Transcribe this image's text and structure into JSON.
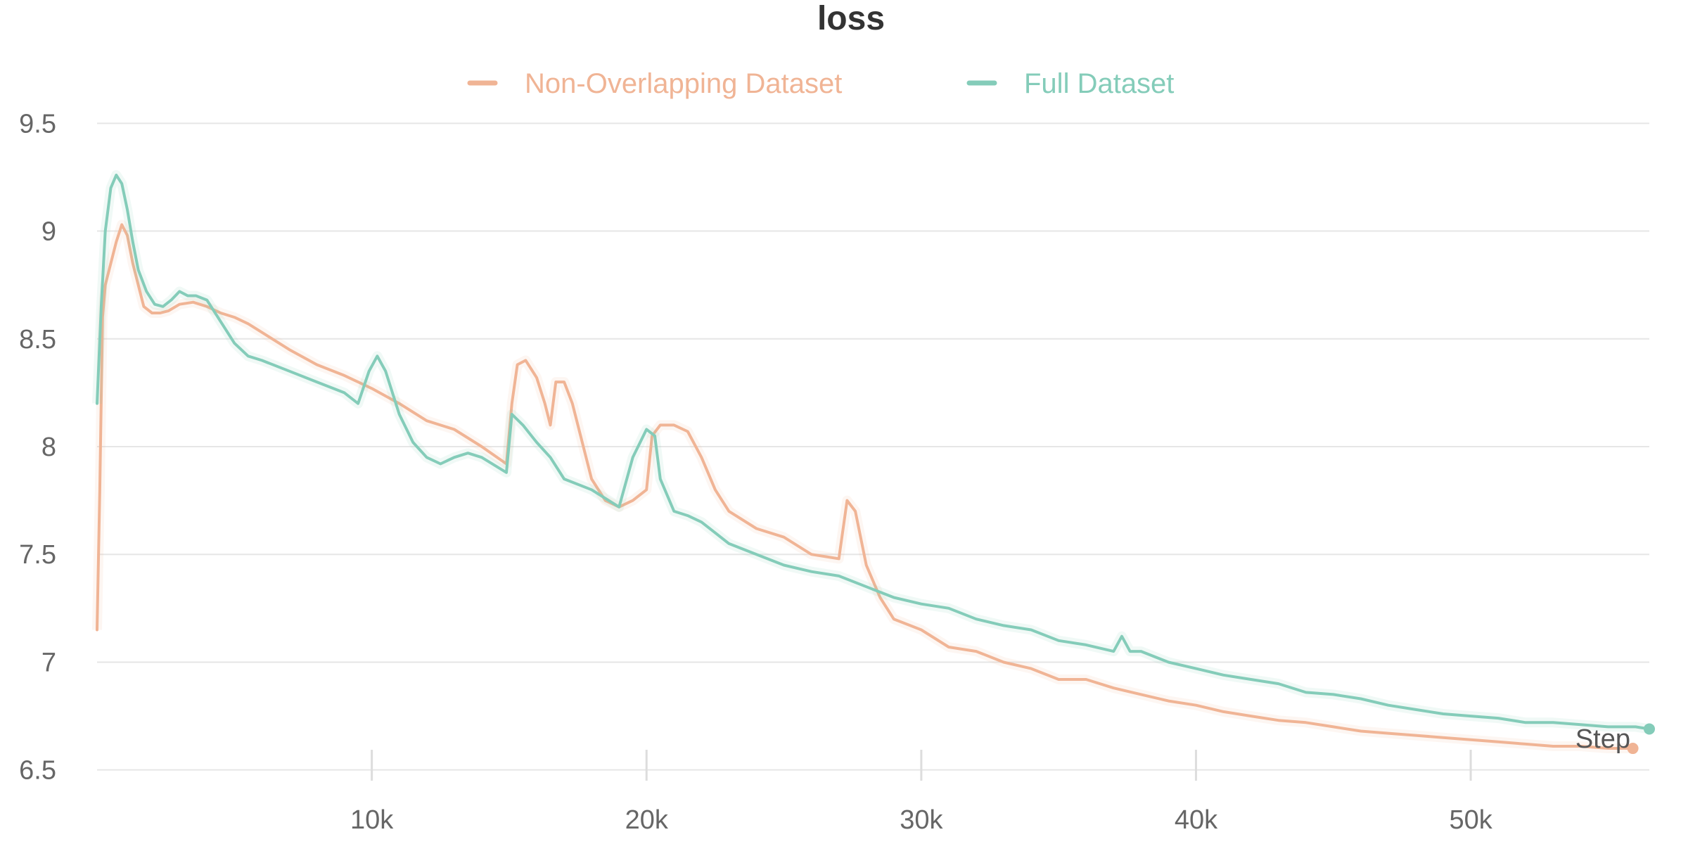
{
  "chart_data": {
    "type": "line",
    "title": "loss",
    "xlabel": "Step",
    "ylabel": "",
    "xlim": [
      0,
      56500
    ],
    "ylim": [
      6.45,
      9.55
    ],
    "x_ticks": [
      10000,
      20000,
      30000,
      40000,
      50000
    ],
    "x_tick_labels": [
      "10k",
      "20k",
      "30k",
      "40k",
      "50k"
    ],
    "y_ticks": [
      6.5,
      7,
      7.5,
      8,
      8.5,
      9,
      9.5
    ],
    "y_tick_labels": [
      "6.5",
      "7",
      "7.5",
      "8",
      "8.5",
      "9",
      "9.5"
    ],
    "grid": true,
    "legend_position": "top-center",
    "series": [
      {
        "name": "Non-Overlapping Dataset",
        "color": "#f0b495",
        "x": [
          0,
          100,
          200,
          300,
          500,
          700,
          900,
          1100,
          1300,
          1500,
          1700,
          2000,
          2300,
          2600,
          3000,
          3500,
          4000,
          4500,
          5000,
          5500,
          6000,
          7000,
          8000,
          9000,
          10000,
          11000,
          12000,
          13000,
          14000,
          14900,
          15100,
          15300,
          15600,
          16000,
          16300,
          16500,
          16700,
          17000,
          17300,
          17700,
          18000,
          18500,
          19000,
          19500,
          20000,
          20200,
          20500,
          21000,
          21500,
          22000,
          22500,
          23000,
          24000,
          25000,
          26000,
          27000,
          27300,
          27600,
          28000,
          28500,
          29000,
          30000,
          31000,
          32000,
          33000,
          34000,
          35000,
          36000,
          37000,
          38000,
          39000,
          40000,
          41000,
          42000,
          43000,
          44000,
          45000,
          46000,
          47000,
          48000,
          49000,
          50000,
          51000,
          52000,
          53000,
          54000,
          55000,
          55900
        ],
        "y": [
          7.15,
          7.8,
          8.6,
          8.75,
          8.85,
          8.95,
          9.03,
          8.98,
          8.85,
          8.75,
          8.65,
          8.62,
          8.62,
          8.63,
          8.66,
          8.67,
          8.65,
          8.62,
          8.6,
          8.57,
          8.53,
          8.45,
          8.38,
          8.33,
          8.27,
          8.2,
          8.12,
          8.08,
          8.0,
          7.92,
          8.2,
          8.38,
          8.4,
          8.32,
          8.2,
          8.1,
          8.3,
          8.3,
          8.2,
          8.0,
          7.85,
          7.75,
          7.72,
          7.75,
          7.8,
          8.05,
          8.1,
          8.1,
          8.07,
          7.95,
          7.8,
          7.7,
          7.62,
          7.58,
          7.5,
          7.48,
          7.75,
          7.7,
          7.45,
          7.3,
          7.2,
          7.15,
          7.07,
          7.05,
          7.0,
          6.97,
          6.92,
          6.92,
          6.88,
          6.85,
          6.82,
          6.8,
          6.77,
          6.75,
          6.73,
          6.72,
          6.7,
          6.68,
          6.67,
          6.66,
          6.65,
          6.64,
          6.63,
          6.62,
          6.61,
          6.61,
          6.6,
          6.6
        ]
      },
      {
        "name": "Full Dataset",
        "color": "#84ccb9",
        "x": [
          0,
          150,
          300,
          500,
          700,
          900,
          1100,
          1300,
          1500,
          1800,
          2100,
          2400,
          2700,
          3000,
          3300,
          3600,
          4000,
          4500,
          5000,
          5500,
          6000,
          7000,
          8000,
          9000,
          9500,
          9900,
          10200,
          10500,
          11000,
          11500,
          12000,
          12500,
          13000,
          13500,
          14000,
          14900,
          15100,
          15500,
          16000,
          16500,
          17000,
          18000,
          19000,
          19500,
          20000,
          20300,
          20500,
          21000,
          21500,
          22000,
          22500,
          23000,
          24000,
          25000,
          26000,
          27000,
          28000,
          29000,
          30000,
          31000,
          32000,
          33000,
          34000,
          35000,
          36000,
          37000,
          37300,
          37600,
          38000,
          39000,
          40000,
          41000,
          42000,
          43000,
          44000,
          45000,
          46000,
          47000,
          48000,
          49000,
          50000,
          51000,
          52000,
          53000,
          54000,
          55000,
          56000,
          56500
        ],
        "y": [
          8.2,
          8.65,
          9.0,
          9.2,
          9.26,
          9.22,
          9.1,
          8.95,
          8.82,
          8.72,
          8.66,
          8.65,
          8.68,
          8.72,
          8.7,
          8.7,
          8.68,
          8.58,
          8.48,
          8.42,
          8.4,
          8.35,
          8.3,
          8.25,
          8.2,
          8.35,
          8.42,
          8.35,
          8.15,
          8.02,
          7.95,
          7.92,
          7.95,
          7.97,
          7.95,
          7.88,
          8.15,
          8.1,
          8.02,
          7.95,
          7.85,
          7.8,
          7.72,
          7.95,
          8.08,
          8.05,
          7.85,
          7.7,
          7.68,
          7.65,
          7.6,
          7.55,
          7.5,
          7.45,
          7.42,
          7.4,
          7.35,
          7.3,
          7.27,
          7.25,
          7.2,
          7.17,
          7.15,
          7.1,
          7.08,
          7.05,
          7.12,
          7.05,
          7.05,
          7.0,
          6.97,
          6.94,
          6.92,
          6.9,
          6.86,
          6.85,
          6.83,
          6.8,
          6.78,
          6.76,
          6.75,
          6.74,
          6.72,
          6.72,
          6.71,
          6.7,
          6.7,
          6.69
        ]
      }
    ]
  }
}
